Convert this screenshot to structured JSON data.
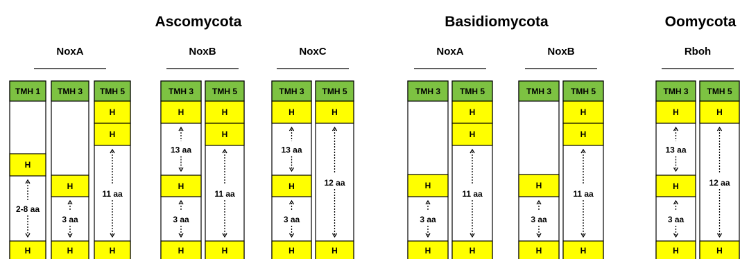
{
  "colors": {
    "tmh_fill": "#7dc242",
    "helix_fill": "#ffff00",
    "column_stroke": "#000000",
    "text": "#000000"
  },
  "groups": [
    {
      "name": "Ascomycota",
      "subgroups": [
        {
          "name": "NoxA",
          "columns": [
            {
              "header": "TMH 1",
              "segments": [
                {
                  "kind": "empty"
                },
                {
                  "kind": "helix",
                  "label": "H"
                },
                {
                  "kind": "spacer",
                  "label": "2-8 aa"
                },
                {
                  "kind": "helix",
                  "label": "H"
                }
              ]
            },
            {
              "header": "TMH 3",
              "segments": [
                {
                  "kind": "empty"
                },
                {
                  "kind": "helix",
                  "label": "H"
                },
                {
                  "kind": "spacer",
                  "label": "3 aa"
                },
                {
                  "kind": "helix",
                  "label": "H"
                }
              ]
            },
            {
              "header": "TMH 5",
              "segments": [
                {
                  "kind": "helix",
                  "label": "H"
                },
                {
                  "kind": "helix",
                  "label": "H"
                },
                {
                  "kind": "spacer",
                  "label": "11 aa"
                },
                {
                  "kind": "helix",
                  "label": "H"
                }
              ]
            }
          ]
        },
        {
          "name": "NoxB",
          "columns": [
            {
              "header": "TMH 3",
              "segments": [
                {
                  "kind": "helix",
                  "label": "H"
                },
                {
                  "kind": "spacer",
                  "label": "13 aa"
                },
                {
                  "kind": "helix",
                  "label": "H"
                },
                {
                  "kind": "spacer",
                  "label": "3 aa"
                },
                {
                  "kind": "helix",
                  "label": "H"
                }
              ]
            },
            {
              "header": "TMH 5",
              "segments": [
                {
                  "kind": "helix",
                  "label": "H"
                },
                {
                  "kind": "helix",
                  "label": "H"
                },
                {
                  "kind": "spacer",
                  "label": "11 aa"
                },
                {
                  "kind": "helix",
                  "label": "H"
                }
              ]
            }
          ]
        },
        {
          "name": "NoxC",
          "columns": [
            {
              "header": "TMH 3",
              "segments": [
                {
                  "kind": "helix",
                  "label": "H"
                },
                {
                  "kind": "spacer",
                  "label": "13 aa"
                },
                {
                  "kind": "helix",
                  "label": "H"
                },
                {
                  "kind": "spacer",
                  "label": "3 aa"
                },
                {
                  "kind": "helix",
                  "label": "H"
                }
              ]
            },
            {
              "header": "TMH 5",
              "segments": [
                {
                  "kind": "helix",
                  "label": "H"
                },
                {
                  "kind": "spacer",
                  "label": "12 aa"
                },
                {
                  "kind": "helix",
                  "label": "H"
                }
              ]
            }
          ]
        }
      ]
    },
    {
      "name": "Basidiomycota",
      "subgroups": [
        {
          "name": "NoxA",
          "columns": [
            {
              "header": "TMH 3",
              "segments": [
                {
                  "kind": "empty"
                },
                {
                  "kind": "helix",
                  "label": "H"
                },
                {
                  "kind": "spacer",
                  "label": "3 aa"
                },
                {
                  "kind": "helix",
                  "label": "H"
                }
              ]
            },
            {
              "header": "TMH 5",
              "segments": [
                {
                  "kind": "helix",
                  "label": "H"
                },
                {
                  "kind": "helix",
                  "label": "H"
                },
                {
                  "kind": "spacer",
                  "label": "11 aa"
                },
                {
                  "kind": "helix",
                  "label": "H"
                }
              ]
            }
          ]
        },
        {
          "name": "NoxB",
          "columns": [
            {
              "header": "TMH 3",
              "segments": [
                {
                  "kind": "empty"
                },
                {
                  "kind": "helix",
                  "label": "H"
                },
                {
                  "kind": "spacer",
                  "label": "3 aa"
                },
                {
                  "kind": "helix",
                  "label": "H"
                }
              ]
            },
            {
              "header": "TMH 5",
              "segments": [
                {
                  "kind": "helix",
                  "label": "H"
                },
                {
                  "kind": "helix",
                  "label": "H"
                },
                {
                  "kind": "spacer",
                  "label": "11 aa"
                },
                {
                  "kind": "helix",
                  "label": "H"
                }
              ]
            }
          ]
        }
      ]
    },
    {
      "name": "Oomycota",
      "subgroups": [
        {
          "name": "Rboh",
          "columns": [
            {
              "header": "TMH 3",
              "segments": [
                {
                  "kind": "helix",
                  "label": "H"
                },
                {
                  "kind": "spacer",
                  "label": "13 aa"
                },
                {
                  "kind": "helix",
                  "label": "H"
                },
                {
                  "kind": "spacer",
                  "label": "3 aa"
                },
                {
                  "kind": "helix",
                  "label": "H"
                }
              ]
            },
            {
              "header": "TMH 5",
              "segments": [
                {
                  "kind": "helix",
                  "label": "H"
                },
                {
                  "kind": "spacer",
                  "label": "12 aa"
                },
                {
                  "kind": "helix",
                  "label": "H"
                }
              ]
            }
          ]
        }
      ]
    }
  ]
}
